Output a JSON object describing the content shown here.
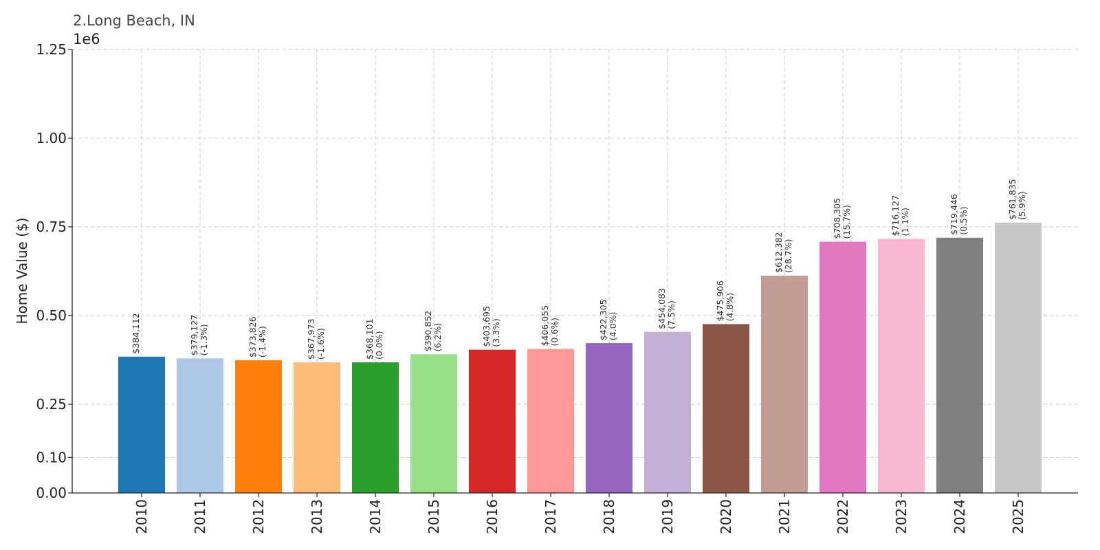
{
  "chart_data": {
    "type": "bar",
    "title": "2.Long Beach, IN",
    "ylabel": "Home Value ($)",
    "xlabel": "",
    "y_scale_label": "1e6",
    "ylim": [
      0,
      1250000
    ],
    "yticks": [
      0,
      100000,
      250000,
      500000,
      750000,
      1000000,
      1250000
    ],
    "ytick_labels": [
      "0.00",
      "0.10",
      "0.25",
      "0.50",
      "0.75",
      "1.00",
      "1.25"
    ],
    "grid": true,
    "categories": [
      "2010",
      "2011",
      "2012",
      "2013",
      "2014",
      "2015",
      "2016",
      "2017",
      "2018",
      "2019",
      "2020",
      "2021",
      "2022",
      "2023",
      "2024",
      "2025"
    ],
    "values": [
      384112,
      379127,
      373826,
      367973,
      368101,
      390852,
      403695,
      406055,
      422305,
      454083,
      475906,
      612382,
      708305,
      716127,
      719446,
      761835
    ],
    "value_labels": [
      "$384,112",
      "$379,127",
      "$373,826",
      "$367,973",
      "$368,101",
      "$390,852",
      "$403,695",
      "$406,055",
      "$422,305",
      "$454,083",
      "$475,906",
      "$612,382",
      "$708,305",
      "$716,127",
      "$719,446",
      "$761,835"
    ],
    "change_labels": [
      "",
      "(-1.3%)",
      "(-1.4%)",
      "(-1.6%)",
      "(0.0%)",
      "(6.2%)",
      "(3.3%)",
      "(0.6%)",
      "(4.0%)",
      "(7.5%)",
      "(4.8%)",
      "(28.7%)",
      "(15.7%)",
      "(1.1%)",
      "(0.5%)",
      "(5.9%)"
    ],
    "colors": [
      "#1f77b4",
      "#aec7e8",
      "#ff7f0e",
      "#ffbb78",
      "#2ca02c",
      "#98df8a",
      "#d62728",
      "#ff9896",
      "#9467bd",
      "#c5b0d5",
      "#8c564b",
      "#c49c94",
      "#e377c2",
      "#f7b6d2",
      "#7f7f7f",
      "#c7c7c7"
    ]
  }
}
